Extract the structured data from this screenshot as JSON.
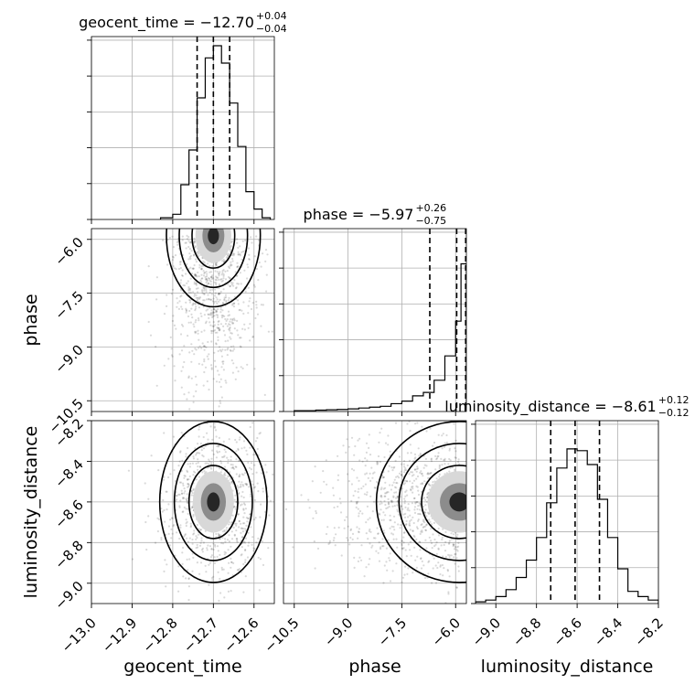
{
  "chart_data": {
    "type": "corner",
    "parameters": [
      "geocent_time",
      "phase",
      "luminosity_distance"
    ],
    "axes": {
      "geocent_time": {
        "lim": [
          -13.0,
          -12.55
        ],
        "ticks": [
          -13.0,
          -12.9,
          -12.8,
          -12.7,
          -12.6
        ],
        "tick_labels": [
          "−13.0",
          "−12.9",
          "−12.8",
          "−12.7",
          "−12.6"
        ],
        "label": "geocent_time"
      },
      "phase": {
        "lim": [
          -10.8,
          -5.7
        ],
        "ticks": [
          -10.5,
          -9.0,
          -7.5,
          -6.0
        ],
        "tick_labels": [
          "−10.5",
          "−9.0",
          "−7.5",
          "−6.0"
        ],
        "label": "phase"
      },
      "luminosity_distance": {
        "lim": [
          -9.1,
          -8.2
        ],
        "ticks": [
          -9.0,
          -8.8,
          -8.6,
          -8.4,
          -8.2
        ],
        "tick_labels": [
          "−9.0",
          "−8.8",
          "−8.6",
          "−8.4",
          "−8.2"
        ],
        "label": "luminosity_distance"
      }
    },
    "titles": [
      {
        "param": "geocent_time",
        "main": "geocent_time = −12.70",
        "plus": "+0.04",
        "minus": "−0.04"
      },
      {
        "param": "phase",
        "main": "phase = −5.97",
        "plus": "+0.26",
        "minus": "−0.75"
      },
      {
        "param": "luminosity_distance",
        "main": "luminosity_distance = −8.61",
        "plus": "+0.12",
        "minus": "−0.12"
      }
    ],
    "histograms": {
      "geocent_time": {
        "edges": [
          -12.83,
          -12.8,
          -12.78,
          -12.76,
          -12.74,
          -12.72,
          -12.7,
          -12.68,
          -12.66,
          -12.64,
          -12.62,
          -12.6,
          -12.58,
          -12.56
        ],
        "counts": [
          0.01,
          0.03,
          0.2,
          0.4,
          0.7,
          0.93,
          1.0,
          0.9,
          0.67,
          0.42,
          0.16,
          0.06,
          0.01
        ],
        "quantiles": [
          -12.74,
          -12.7,
          -12.66
        ]
      },
      "phase": {
        "edges": [
          -10.5,
          -10.2,
          -9.9,
          -9.6,
          -9.3,
          -9.0,
          -8.7,
          -8.4,
          -8.1,
          -7.8,
          -7.5,
          -7.2,
          -6.9,
          -6.6,
          -6.3,
          -6.0,
          -5.85,
          -5.7
        ],
        "counts": [
          0.005,
          0.005,
          0.008,
          0.01,
          0.012,
          0.015,
          0.02,
          0.025,
          0.03,
          0.045,
          0.06,
          0.09,
          0.11,
          0.18,
          0.32,
          0.52,
          0.85
        ],
        "quantiles": [
          -6.72,
          -5.97,
          -5.72
        ]
      },
      "luminosity_distance": {
        "edges": [
          -9.1,
          -9.05,
          -9.0,
          -8.95,
          -8.9,
          -8.85,
          -8.8,
          -8.75,
          -8.7,
          -8.65,
          -8.6,
          -8.55,
          -8.5,
          -8.45,
          -8.4,
          -8.35,
          -8.3,
          -8.25,
          -8.2
        ],
        "counts": [
          0.01,
          0.02,
          0.04,
          0.08,
          0.15,
          0.25,
          0.38,
          0.58,
          0.78,
          0.89,
          0.88,
          0.8,
          0.6,
          0.38,
          0.2,
          0.07,
          0.04,
          0.02
        ],
        "quantiles": [
          -8.73,
          -8.61,
          -8.49
        ]
      }
    },
    "joint": [
      {
        "x": "geocent_time",
        "y": "phase",
        "center": [
          -12.7,
          -5.9
        ],
        "spread": [
          0.035,
          0.6
        ]
      },
      {
        "x": "geocent_time",
        "y": "luminosity_distance",
        "center": [
          -12.7,
          -8.6
        ],
        "spread": [
          0.04,
          0.12
        ]
      },
      {
        "x": "phase",
        "y": "luminosity_distance",
        "center": [
          -5.9,
          -8.6
        ],
        "spread": [
          0.7,
          0.12
        ]
      }
    ],
    "grid": true
  }
}
